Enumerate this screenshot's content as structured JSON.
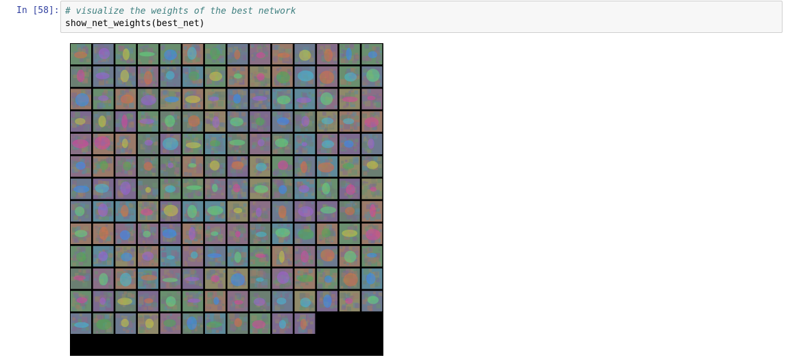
{
  "cell": {
    "prompt": "In [58]:",
    "code_comment": "# visualize the weights of the best network",
    "code_call": "show_net_weights(best_net)"
  },
  "output": {
    "grid_rows": 13,
    "grid_cols": 14,
    "tile_count": 179
  }
}
